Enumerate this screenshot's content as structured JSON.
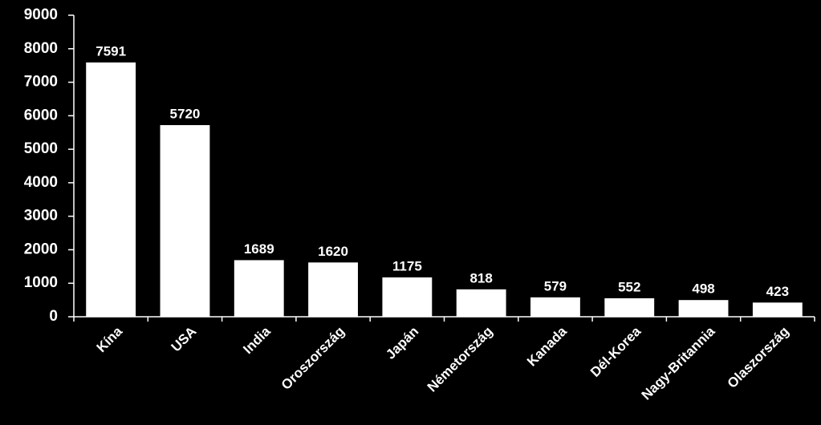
{
  "chart_data": {
    "type": "bar",
    "categories": [
      "Kína",
      "USA",
      "India",
      "Oroszország",
      "Japán",
      "Németország",
      "Kanada",
      "Dél-Korea",
      "Nagy-Britannia",
      "Olaszország"
    ],
    "values": [
      7591,
      5720,
      1689,
      1620,
      1175,
      818,
      579,
      552,
      498,
      423
    ],
    "color": "#ffffff",
    "ylim": [
      0,
      9000
    ],
    "yticks": [
      0,
      1000,
      2000,
      3000,
      4000,
      5000,
      6000,
      7000,
      8000,
      9000
    ],
    "grid": false
  }
}
